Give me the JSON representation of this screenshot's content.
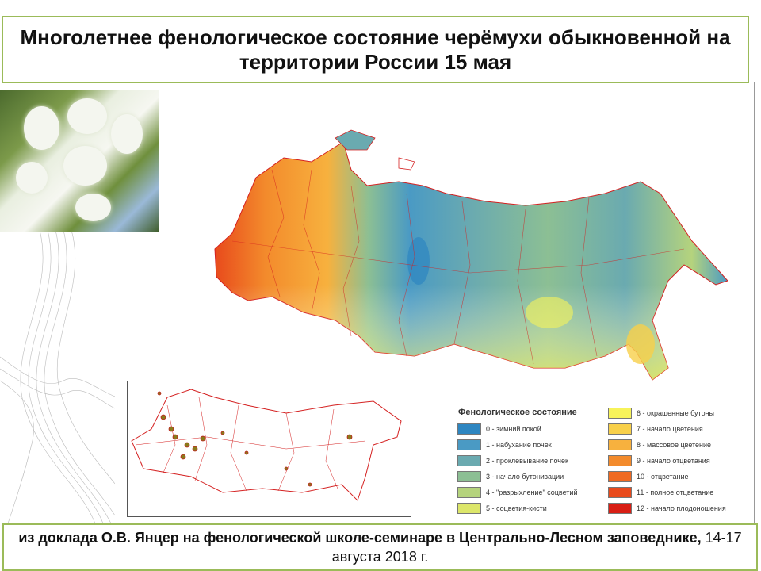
{
  "slide": {
    "title": "Многолетнее фенологическое состояние черёмухи обыкновенной на территории России 15 мая",
    "footer": {
      "bold_text": "из доклада О.В. Янцер на фенологической школе-семинаре в Центрально-Лесном заповеднике,",
      "plain_text": " 14-17 августа 2018 г."
    }
  },
  "legend": {
    "title": "Фенологическое состояние",
    "items": [
      {
        "label": "0 - зимний покой",
        "color": "#2e86c1"
      },
      {
        "label": "1 - набухание почек",
        "color": "#4a9ac4"
      },
      {
        "label": "2 - проклевывание почек",
        "color": "#6aaab0"
      },
      {
        "label": "3 - начало бутонизации",
        "color": "#8cbf94"
      },
      {
        "label": "4 - \"разрыхление\" соцветий",
        "color": "#b5d37d"
      },
      {
        "label": "5 - соцветия-кисти",
        "color": "#dce66a"
      },
      {
        "label": "6 - окрашенные бутоны",
        "color": "#f7f35a"
      },
      {
        "label": "7 - начало цветения",
        "color": "#f8d04a"
      },
      {
        "label": "8 - массовое цветение",
        "color": "#f7b13e"
      },
      {
        "label": "9 - начало отцветания",
        "color": "#f38b2c"
      },
      {
        "label": "10 - отцветание",
        "color": "#ef6a22"
      },
      {
        "label": "11 - полное отцветание",
        "color": "#e84a1c"
      },
      {
        "label": "12 - начало плодоношения",
        "color": "#d81e14"
      }
    ]
  },
  "colors": {
    "accent_border": "#9bbb59",
    "boundaries": "#d42020"
  }
}
